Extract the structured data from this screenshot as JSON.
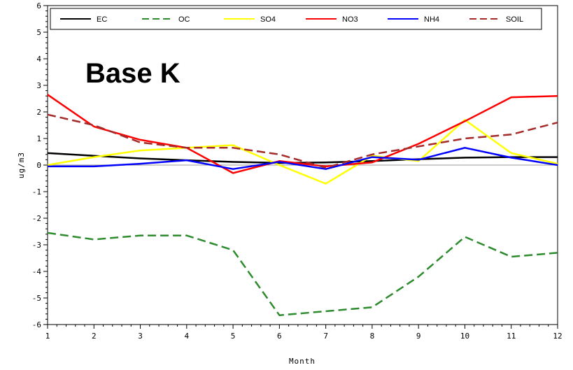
{
  "chart_data": {
    "type": "line",
    "title": "",
    "annotation": "Base K",
    "xlabel": "Month",
    "ylabel": "ug/m3",
    "xlim": [
      1,
      12
    ],
    "ylim": [
      -6,
      6
    ],
    "x": [
      1,
      2,
      3,
      4,
      5,
      6,
      7,
      8,
      9,
      10,
      11,
      12
    ],
    "x_ticks": [
      "1",
      "2",
      "3",
      "4",
      "5",
      "6",
      "7",
      "8",
      "9",
      "10",
      "11",
      "12"
    ],
    "y_ticks": [
      "-6",
      "-5",
      "-4",
      "-3",
      "-2",
      "-1",
      "0",
      "1",
      "2",
      "3",
      "4",
      "5",
      "6"
    ],
    "grid": false,
    "legend_position": "top",
    "zero_line": true,
    "series": [
      {
        "name": "EC",
        "color": "#000000",
        "dash": "solid",
        "values": [
          0.45,
          0.35,
          0.25,
          0.18,
          0.12,
          0.08,
          0.1,
          0.15,
          0.22,
          0.28,
          0.3,
          0.3
        ]
      },
      {
        "name": "OC",
        "color": "#2e8b2e",
        "dash": "dashed",
        "values": [
          -2.55,
          -2.8,
          -2.65,
          -2.65,
          -3.2,
          -5.65,
          -5.5,
          -5.35,
          -4.2,
          -2.7,
          -3.45,
          -3.3
        ]
      },
      {
        "name": "SO4",
        "color": "#ffff00",
        "dash": "solid",
        "values": [
          0.0,
          0.3,
          0.55,
          0.65,
          0.75,
          0.0,
          -0.7,
          0.35,
          0.15,
          1.7,
          0.45,
          0.05
        ]
      },
      {
        "name": "NO3",
        "color": "#ff0000",
        "dash": "solid",
        "values": [
          2.65,
          1.45,
          0.95,
          0.65,
          -0.3,
          0.15,
          -0.05,
          0.1,
          0.8,
          1.65,
          2.55,
          2.6
        ]
      },
      {
        "name": "NH4",
        "color": "#0000ff",
        "dash": "solid",
        "values": [
          -0.05,
          -0.05,
          0.05,
          0.18,
          -0.15,
          0.12,
          -0.15,
          0.3,
          0.2,
          0.65,
          0.28,
          0.0
        ]
      },
      {
        "name": "SOIL",
        "color": "#a52a2a",
        "dash": "dashed",
        "values": [
          1.9,
          1.5,
          0.85,
          0.65,
          0.65,
          0.4,
          -0.1,
          0.4,
          0.7,
          1.0,
          1.15,
          1.6
        ]
      }
    ]
  }
}
